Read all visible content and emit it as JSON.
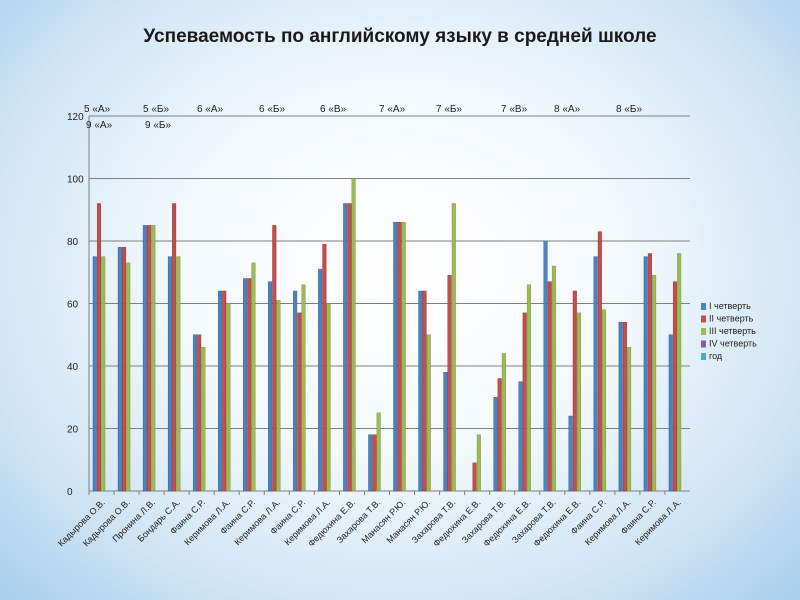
{
  "title": "Успеваемость по английскому языку в средней школе",
  "chart_data": {
    "type": "bar",
    "ylim": [
      0,
      120
    ],
    "yticks": [
      0,
      20,
      40,
      60,
      80,
      100,
      120
    ],
    "grid": true,
    "legend_position": "right",
    "class_labels_row1": [
      "5 «А»",
      "5 «Б»",
      "6 «А»",
      "6 «Б»",
      "6 «В»",
      "7 «А»",
      "7 «Б»",
      "7 «В»",
      "8 «А»",
      "8 «Б»"
    ],
    "class_labels_row2": [
      "9 «А»",
      "9 «Б»"
    ],
    "categories": [
      "Кадырова О.В.",
      "Кадырова О.В.",
      "Пронина Л.В.",
      "Бондарь С.А.",
      "Фаина С.Р.",
      "Керимова Л.А.",
      "Фаина С.Р.",
      "Керимова Л.А.",
      "Фаина С.Р.",
      "Керимова Л.А.",
      "Федюхина Е.В.",
      "Захарова Т.В.",
      "Манасян Р.Ю.",
      "Манасян Р.Ю.",
      "Захарова Т.В.",
      "Федюхина Е.В.",
      "Захарова Т.В.",
      "Федюхина Е.В.",
      "Захарова Т.В.",
      "Федюхина Е.В.",
      "Фаина С.Р.",
      "Керимова Л.А.",
      "Фаина С.Р.",
      "Керимова Л.А."
    ],
    "series": [
      {
        "name": "I четверть",
        "color": "#4f81bd",
        "values": [
          75,
          78,
          85,
          75,
          50,
          64,
          68,
          67,
          64,
          71,
          92,
          18,
          86,
          64,
          38,
          0,
          30,
          35,
          80,
          24,
          75,
          54,
          75,
          50
        ]
      },
      {
        "name": "II четверть",
        "color": "#c0504d",
        "values": [
          92,
          78,
          85,
          92,
          50,
          64,
          68,
          85,
          57,
          79,
          92,
          18,
          86,
          64,
          69,
          9,
          36,
          57,
          67,
          64,
          83,
          54,
          76,
          67
        ]
      },
      {
        "name": "III четверть",
        "color": "#9bbb59",
        "values": [
          75,
          73,
          85,
          75,
          46,
          60,
          73,
          61,
          66,
          60,
          100,
          25,
          86,
          50,
          92,
          18,
          44,
          66,
          72,
          57,
          58,
          46,
          69,
          76
        ]
      },
      {
        "name": "IV четверть",
        "color": "#8064a2",
        "values": [
          null,
          null,
          null,
          null,
          null,
          null,
          null,
          null,
          null,
          null,
          null,
          null,
          null,
          null,
          null,
          null,
          null,
          null,
          null,
          null,
          null,
          null,
          null,
          null
        ]
      },
      {
        "name": "год",
        "color": "#4bacc6",
        "values": [
          null,
          null,
          null,
          null,
          null,
          null,
          null,
          null,
          null,
          null,
          null,
          null,
          null,
          null,
          null,
          null,
          null,
          null,
          null,
          null,
          null,
          null,
          null,
          null
        ]
      }
    ]
  }
}
